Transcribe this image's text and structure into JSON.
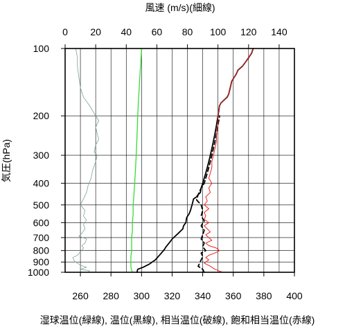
{
  "chart_data": {
    "type": "line",
    "title": "",
    "xlabel": "湿球温位(緑線), 温位(黒線), 相当温位(破線), 飽和相当温位(赤線)",
    "x2label": "風速 (m/s)(細線)",
    "ylabel": "気圧(hPa)",
    "x_bottom": {
      "range": [
        250,
        400
      ],
      "ticks": [
        260,
        280,
        300,
        320,
        340,
        360,
        380,
        400
      ]
    },
    "x_top": {
      "range": [
        0,
        150
      ],
      "ticks": [
        0,
        20,
        40,
        60,
        80,
        100,
        120,
        140
      ]
    },
    "y": {
      "scale": "log",
      "range": [
        1000,
        100
      ],
      "ticks": [
        100,
        200,
        300,
        400,
        500,
        600,
        700,
        800,
        900,
        1000
      ],
      "inverted": true
    },
    "grid": true,
    "series": [
      {
        "name": "風速",
        "axis": "top",
        "color": "#7aa58c",
        "width": 0.8,
        "dash": "",
        "points": [
          [
            15,
            1000
          ],
          [
            16,
            985
          ],
          [
            10,
            970
          ],
          [
            14,
            950
          ],
          [
            11,
            935
          ],
          [
            9,
            920
          ],
          [
            6,
            890
          ],
          [
            5,
            860
          ],
          [
            8,
            840
          ],
          [
            10,
            810
          ],
          [
            12,
            780
          ],
          [
            11,
            760
          ],
          [
            13,
            740
          ],
          [
            14,
            710
          ],
          [
            9,
            690
          ],
          [
            11,
            670
          ],
          [
            13,
            640
          ],
          [
            12,
            610
          ],
          [
            14,
            585
          ],
          [
            12,
            560
          ],
          [
            13,
            530
          ],
          [
            10,
            500
          ],
          [
            12,
            470
          ],
          [
            14,
            440
          ],
          [
            15,
            410
          ],
          [
            17,
            380
          ],
          [
            18,
            350
          ],
          [
            20,
            320
          ],
          [
            21,
            300
          ],
          [
            19,
            290
          ],
          [
            20,
            270
          ],
          [
            22,
            255
          ],
          [
            21,
            240
          ],
          [
            20,
            225
          ],
          [
            22,
            210
          ],
          [
            19,
            195
          ],
          [
            16,
            180
          ],
          [
            12,
            165
          ],
          [
            10,
            150
          ],
          [
            9,
            135
          ],
          [
            8,
            120
          ],
          [
            8,
            110
          ],
          [
            7,
            100
          ]
        ]
      },
      {
        "name": "湿球温位",
        "axis": "bottom",
        "color": "#33dd33",
        "width": 1.3,
        "dash": "",
        "points": [
          [
            294,
            1000
          ],
          [
            293,
            950
          ],
          [
            293,
            900
          ],
          [
            293,
            850
          ],
          [
            293.5,
            800
          ],
          [
            293.5,
            750
          ],
          [
            293.5,
            700
          ],
          [
            294,
            650
          ],
          [
            294,
            600
          ],
          [
            294.5,
            550
          ],
          [
            294.5,
            500
          ],
          [
            295,
            450
          ],
          [
            295.5,
            400
          ],
          [
            296,
            350
          ],
          [
            296.5,
            300
          ],
          [
            297,
            250
          ],
          [
            297.5,
            200
          ],
          [
            298,
            170
          ],
          [
            298.5,
            150
          ],
          [
            299,
            130
          ],
          [
            299.5,
            115
          ],
          [
            300,
            100
          ]
        ]
      },
      {
        "name": "温位",
        "axis": "bottom",
        "color": "#000000",
        "width": 1.8,
        "dash": "",
        "points": [
          [
            297,
            1000
          ],
          [
            297.5,
            970
          ],
          [
            301,
            950
          ],
          [
            305,
            920
          ],
          [
            307,
            900
          ],
          [
            309,
            880
          ],
          [
            311,
            850
          ],
          [
            313,
            820
          ],
          [
            315,
            790
          ],
          [
            316,
            770
          ],
          [
            318,
            740
          ],
          [
            320,
            710
          ],
          [
            322,
            690
          ],
          [
            324,
            670
          ],
          [
            327,
            640
          ],
          [
            327.5,
            620
          ],
          [
            329,
            600
          ],
          [
            329.5,
            570
          ],
          [
            331,
            550
          ],
          [
            332,
            530
          ],
          [
            333,
            500
          ],
          [
            334,
            470
          ],
          [
            336,
            460
          ],
          [
            337,
            450
          ],
          [
            338.5,
            440
          ],
          [
            339,
            420
          ],
          [
            340,
            400
          ],
          [
            341,
            380
          ],
          [
            342,
            360
          ],
          [
            343,
            340
          ],
          [
            344,
            320
          ],
          [
            345,
            300
          ],
          [
            346,
            280
          ],
          [
            347,
            260
          ],
          [
            348,
            240
          ],
          [
            349,
            220
          ],
          [
            350,
            200
          ],
          [
            351,
            180
          ],
          [
            352,
            175
          ],
          [
            354,
            170
          ],
          [
            356,
            165
          ],
          [
            357,
            160
          ],
          [
            358,
            150
          ],
          [
            359,
            140
          ],
          [
            362,
            130
          ],
          [
            363,
            125
          ],
          [
            366,
            120
          ],
          [
            368,
            115
          ],
          [
            370,
            110
          ],
          [
            372,
            105
          ],
          [
            373,
            100
          ]
        ]
      },
      {
        "name": "相当温位",
        "axis": "bottom",
        "color": "#000000",
        "width": 1.8,
        "dash": "6,4",
        "points": [
          [
            341,
            1000
          ],
          [
            340,
            970
          ],
          [
            337,
            940
          ],
          [
            338,
            910
          ],
          [
            339,
            880
          ],
          [
            340,
            850
          ],
          [
            339,
            820
          ],
          [
            342,
            800
          ],
          [
            340,
            770
          ],
          [
            341,
            740
          ],
          [
            339,
            710
          ],
          [
            340,
            680
          ],
          [
            341,
            650
          ],
          [
            339,
            620
          ],
          [
            341,
            590
          ],
          [
            339,
            560
          ],
          [
            340,
            530
          ],
          [
            339,
            500
          ],
          [
            336,
            475
          ],
          [
            337,
            450
          ],
          [
            339,
            420
          ],
          [
            341,
            400
          ],
          [
            342,
            380
          ],
          [
            343,
            360
          ],
          [
            344,
            340
          ],
          [
            345,
            320
          ],
          [
            346,
            300
          ],
          [
            347,
            280
          ],
          [
            348,
            260
          ],
          [
            349,
            240
          ],
          [
            350,
            220
          ],
          [
            351,
            200
          ]
        ]
      },
      {
        "name": "飽和相当温位",
        "axis": "bottom",
        "color": "#ee2222",
        "width": 1.0,
        "dash": "",
        "points": [
          [
            353,
            1000
          ],
          [
            348,
            970
          ],
          [
            345,
            940
          ],
          [
            341,
            910
          ],
          [
            344,
            880
          ],
          [
            342,
            860
          ],
          [
            344,
            840
          ],
          [
            348,
            820
          ],
          [
            351,
            800
          ],
          [
            349,
            780
          ],
          [
            344,
            760
          ],
          [
            342,
            740
          ],
          [
            346,
            720
          ],
          [
            344,
            700
          ],
          [
            342,
            680
          ],
          [
            345,
            660
          ],
          [
            343,
            640
          ],
          [
            341,
            620
          ],
          [
            344,
            600
          ],
          [
            341,
            580
          ],
          [
            342,
            560
          ],
          [
            341,
            540
          ],
          [
            344,
            520
          ],
          [
            341,
            500
          ],
          [
            343,
            480
          ],
          [
            342,
            460
          ],
          [
            345,
            440
          ],
          [
            344,
            420
          ],
          [
            346,
            400
          ],
          [
            344,
            380
          ],
          [
            345,
            360
          ],
          [
            346,
            340
          ],
          [
            346,
            320
          ],
          [
            347,
            300
          ],
          [
            348,
            280
          ],
          [
            349,
            260
          ],
          [
            349,
            240
          ],
          [
            350,
            220
          ],
          [
            350,
            200
          ],
          [
            351,
            180
          ],
          [
            352,
            175
          ],
          [
            354,
            170
          ],
          [
            356,
            165
          ],
          [
            357,
            160
          ],
          [
            358,
            150
          ],
          [
            359,
            140
          ],
          [
            362,
            130
          ],
          [
            363,
            125
          ],
          [
            366,
            120
          ],
          [
            368,
            115
          ],
          [
            370,
            110
          ],
          [
            372,
            105
          ],
          [
            373,
            100
          ]
        ]
      }
    ]
  }
}
